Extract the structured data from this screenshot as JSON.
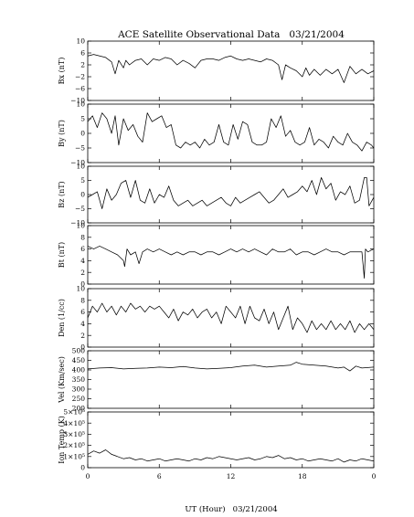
{
  "chart_data": {
    "type": "line",
    "title": "ACE Satellite Observational Data   03/21/2004",
    "xlabel": "UT (Hour)   03/21/2004",
    "x_ticks": [
      "0",
      "6",
      "12",
      "18",
      "0"
    ],
    "x_range": [
      0,
      24
    ],
    "panels": [
      {
        "ylabel": "Bx (nT)",
        "ylim": [
          -10,
          10
        ],
        "y_ticks": [
          10,
          6,
          2,
          -2,
          -6,
          -10
        ],
        "y_tick_labels": [
          "10",
          "6",
          "2",
          "−2",
          "−6",
          "−10"
        ],
        "x": [
          0,
          0.5,
          1,
          1.5,
          2,
          2.3,
          2.6,
          3,
          3.2,
          3.5,
          4,
          4.5,
          5,
          5.5,
          6,
          6.5,
          7,
          7.5,
          8,
          8.5,
          9,
          9.5,
          10,
          10.5,
          11,
          11.5,
          12,
          12.5,
          13,
          13.5,
          14,
          14.5,
          15,
          15.5,
          16,
          16.3,
          16.6,
          17,
          17.5,
          18,
          18.3,
          18.6,
          19,
          19.5,
          20,
          20.5,
          21,
          21.5,
          22,
          22.5,
          23,
          23.5,
          24
        ],
        "values": [
          5,
          5.5,
          5,
          4.5,
          3,
          -1,
          3.5,
          1,
          3.5,
          2,
          3.5,
          4,
          2,
          4,
          3.5,
          4.5,
          4,
          2,
          3.5,
          2.5,
          1,
          3.5,
          4,
          4,
          3.5,
          4.5,
          5,
          4,
          3.5,
          4,
          3.5,
          3,
          4,
          3.5,
          2,
          -3,
          2,
          1,
          0,
          -2,
          1,
          -1.5,
          0.5,
          -1.5,
          0.5,
          -1,
          0.5,
          -4,
          1.5,
          -1,
          0.5,
          -1,
          0
        ]
      },
      {
        "ylabel": "By (nT)",
        "ylim": [
          -10,
          10
        ],
        "y_ticks": [
          10,
          5,
          0,
          -5,
          -10
        ],
        "y_tick_labels": [
          "10",
          "5",
          "0",
          "−5",
          "−10"
        ],
        "x": [
          0,
          0.4,
          0.8,
          1.2,
          1.6,
          2,
          2.3,
          2.6,
          3,
          3.4,
          3.8,
          4.2,
          4.6,
          5,
          5.4,
          5.8,
          6.2,
          6.6,
          7,
          7.4,
          7.8,
          8.2,
          8.6,
          9,
          9.4,
          9.8,
          10.2,
          10.6,
          11,
          11.4,
          11.8,
          12.2,
          12.6,
          13,
          13.4,
          13.8,
          14.2,
          14.6,
          15,
          15.4,
          15.8,
          16.2,
          16.6,
          17,
          17.4,
          17.8,
          18.2,
          18.6,
          19,
          19.4,
          19.8,
          20.2,
          20.6,
          21,
          21.4,
          21.8,
          22.2,
          22.6,
          23,
          23.4,
          23.8,
          24
        ],
        "values": [
          4,
          6,
          2,
          7,
          5,
          0,
          6,
          -4,
          5,
          1,
          3,
          -1,
          -3,
          7,
          4,
          5,
          6,
          2,
          3,
          -4,
          -5,
          -3,
          -4,
          -3,
          -5,
          -2,
          -4,
          -3,
          3,
          -3,
          -4,
          3,
          -2,
          4,
          3,
          -3,
          -4,
          -4,
          -3,
          5,
          2,
          6,
          -1,
          1,
          -3,
          -4,
          -3,
          2,
          -4,
          -2,
          -3,
          -5,
          -1,
          -3,
          -4,
          0,
          -3,
          -4,
          -6,
          -3,
          -4,
          -5
        ]
      },
      {
        "ylabel": "Bz (nT)",
        "ylim": [
          -10,
          10
        ],
        "y_ticks": [
          10,
          5,
          0,
          -5,
          -10
        ],
        "y_tick_labels": [
          "10",
          "5",
          "0",
          "−5",
          "−10"
        ],
        "x": [
          0,
          0.4,
          0.8,
          1.2,
          1.6,
          2,
          2.4,
          2.8,
          3.2,
          3.6,
          4,
          4.4,
          4.8,
          5.2,
          5.6,
          6,
          6.4,
          6.8,
          7.2,
          7.6,
          8,
          8.4,
          8.8,
          9.2,
          9.6,
          10,
          10.4,
          10.8,
          11.2,
          11.6,
          12,
          12.4,
          12.8,
          13.2,
          13.6,
          14,
          14.4,
          14.8,
          15.2,
          15.6,
          16,
          16.4,
          16.8,
          17.2,
          17.6,
          18,
          18.4,
          18.8,
          19.2,
          19.6,
          20,
          20.4,
          20.8,
          21.2,
          21.6,
          22,
          22.4,
          22.8,
          23.2,
          23.4,
          23.6,
          24
        ],
        "values": [
          -1,
          0,
          1,
          -5,
          2,
          -2,
          0,
          4,
          5,
          -1,
          5,
          -2,
          -3,
          2,
          -3,
          0,
          -1,
          3,
          -2,
          -4,
          -3,
          -2,
          -4,
          -3,
          -2,
          -4,
          -3,
          -2,
          -1,
          -3,
          -4,
          -1,
          -3,
          -2,
          -1,
          0,
          1,
          -1,
          -3,
          -2,
          0,
          2,
          -1,
          0,
          1,
          3,
          1,
          5,
          0,
          6,
          2,
          4,
          -2,
          1,
          0,
          3,
          -3,
          -2,
          6,
          6,
          -4,
          -1
        ]
      },
      {
        "ylabel": "Bt (nT)",
        "ylim": [
          0,
          10
        ],
        "y_ticks": [
          10,
          8,
          6,
          4,
          2,
          0
        ],
        "y_tick_labels": [
          "10",
          "8",
          "6",
          "4",
          "2",
          "0"
        ],
        "x": [
          0,
          0.5,
          1,
          1.5,
          2,
          2.5,
          3,
          3.1,
          3.3,
          3.6,
          4,
          4.3,
          4.6,
          5,
          5.5,
          6,
          6.5,
          7,
          7.5,
          8,
          8.5,
          9,
          9.5,
          10,
          10.5,
          11,
          11.5,
          12,
          12.5,
          13,
          13.5,
          14,
          14.5,
          15,
          15.5,
          16,
          16.5,
          17,
          17.5,
          18,
          18.5,
          19,
          19.5,
          20,
          20.5,
          21,
          21.5,
          22,
          22.5,
          23,
          23.2,
          23.3,
          23.5,
          24
        ],
        "values": [
          6.5,
          6,
          6.5,
          6,
          5.5,
          5,
          4,
          3,
          6,
          5,
          5.5,
          3.5,
          5.5,
          6,
          5.5,
          6,
          5.5,
          5,
          5.5,
          5,
          5.5,
          5.5,
          5,
          5.5,
          5.5,
          5,
          5.5,
          6,
          5.5,
          6,
          5.5,
          6,
          5.5,
          5,
          6,
          5.5,
          5.5,
          6,
          5,
          5.5,
          5.5,
          5,
          5.5,
          6,
          5.5,
          5.5,
          5,
          5.5,
          5.5,
          5.5,
          1,
          6,
          5.5,
          6
        ]
      },
      {
        "ylabel": "Den (1/cc)",
        "ylim": [
          0,
          10
        ],
        "y_ticks": [
          10,
          8,
          6,
          4,
          2,
          0
        ],
        "y_tick_labels": [
          "10",
          "8",
          "6",
          "4",
          "2",
          "0"
        ],
        "x": [
          0,
          0.4,
          0.8,
          1.2,
          1.6,
          2,
          2.4,
          2.8,
          3.2,
          3.6,
          4,
          4.4,
          4.8,
          5.2,
          5.6,
          6,
          6.4,
          6.8,
          7.2,
          7.6,
          8,
          8.4,
          8.8,
          9.2,
          9.6,
          10,
          10.4,
          10.8,
          11.2,
          11.6,
          12,
          12.4,
          12.8,
          13.2,
          13.6,
          14,
          14.4,
          14.8,
          15.2,
          15.6,
          16,
          16.4,
          16.8,
          17.2,
          17.6,
          18,
          18.4,
          18.8,
          19.2,
          19.6,
          20,
          20.4,
          20.8,
          21.2,
          21.6,
          22,
          22.4,
          22.8,
          23.2,
          23.6,
          24
        ],
        "values": [
          5,
          7,
          6,
          7.5,
          6,
          7,
          5.5,
          7,
          6,
          7.5,
          6.5,
          7,
          6,
          7,
          6.5,
          7,
          6,
          5,
          6.5,
          4.5,
          6,
          5.5,
          6.5,
          5,
          6,
          6.5,
          5,
          6,
          4,
          7,
          6,
          5,
          7,
          4,
          7,
          5,
          4.5,
          6.5,
          4,
          6,
          3,
          5,
          7,
          3,
          5,
          4,
          2.5,
          4.5,
          3,
          4,
          3,
          4.5,
          3,
          4,
          3,
          4.5,
          2.5,
          4,
          3,
          4,
          3
        ]
      },
      {
        "ylabel": "Vel (Km/sec)",
        "ylim": [
          200,
          500
        ],
        "y_ticks": [
          500,
          450,
          400,
          350,
          300,
          250,
          200
        ],
        "y_tick_labels": [
          "500",
          "450",
          "400",
          "350",
          "300",
          "250",
          "200"
        ],
        "x": [
          0,
          1,
          2,
          3,
          4,
          5,
          6,
          7,
          8,
          9,
          10,
          11,
          12,
          13,
          14,
          15,
          16,
          17,
          17.5,
          18,
          19,
          20,
          21,
          21.5,
          22,
          22.5,
          23,
          24
        ],
        "values": [
          405,
          410,
          412,
          405,
          408,
          410,
          415,
          412,
          418,
          410,
          405,
          408,
          412,
          420,
          425,
          415,
          420,
          425,
          440,
          430,
          425,
          420,
          410,
          415,
          395,
          420,
          410,
          415
        ]
      },
      {
        "ylabel": "Ion Temp (K)",
        "ylim": [
          0,
          5
        ],
        "y_ticks": [
          5,
          4,
          3,
          2,
          1,
          0
        ],
        "y_tick_labels": [
          "5×10⁵",
          "4×10⁵",
          "3×10⁵",
          "2×10⁵",
          "1×10⁵",
          "0"
        ],
        "x": [
          0,
          0.5,
          1,
          1.5,
          2,
          2.5,
          3,
          3.5,
          4,
          4.5,
          5,
          5.5,
          6,
          6.5,
          7,
          7.5,
          8,
          8.5,
          9,
          9.5,
          10,
          10.5,
          11,
          11.5,
          12,
          12.5,
          13,
          13.5,
          14,
          14.5,
          15,
          15.5,
          16,
          16.5,
          17,
          17.5,
          18,
          18.5,
          19,
          19.5,
          20,
          20.5,
          21,
          21.5,
          22,
          22.5,
          23,
          23.5,
          24
        ],
        "values": [
          1.2,
          1.5,
          1.3,
          1.6,
          1.2,
          1,
          0.8,
          0.9,
          0.7,
          0.8,
          0.6,
          0.7,
          0.8,
          0.6,
          0.7,
          0.8,
          0.7,
          0.6,
          0.8,
          0.7,
          0.9,
          0.8,
          1,
          0.9,
          0.8,
          0.7,
          0.8,
          0.9,
          0.7,
          0.8,
          1,
          0.9,
          1.1,
          0.8,
          0.9,
          0.7,
          0.8,
          0.6,
          0.7,
          0.8,
          0.7,
          0.6,
          0.8,
          0.5,
          0.7,
          0.6,
          0.8,
          0.7,
          0.6
        ]
      }
    ]
  }
}
